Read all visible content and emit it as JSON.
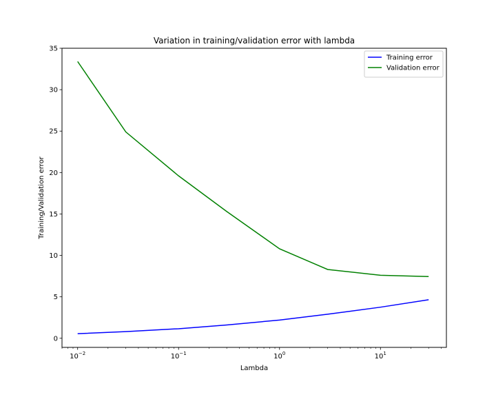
{
  "chart_data": {
    "type": "line",
    "title": "Variation in training/validation error with lambda",
    "xlabel": "Lambda",
    "ylabel": "Training/Validation error",
    "xscale": "log",
    "xlim": [
      0.007,
      45
    ],
    "ylim": [
      -1.1,
      35
    ],
    "grid": false,
    "legend_position": "top-right",
    "x_ticks": [
      {
        "base": "10",
        "exp": "−2",
        "value": 0.01
      },
      {
        "base": "10",
        "exp": "−1",
        "value": 0.1
      },
      {
        "base": "10",
        "exp": "0",
        "value": 1
      },
      {
        "base": "10",
        "exp": "1",
        "value": 10
      }
    ],
    "y_ticks": [
      0,
      5,
      10,
      15,
      20,
      25,
      30,
      35
    ],
    "x": [
      0.01,
      0.03,
      0.1,
      0.3,
      1,
      3,
      10,
      30
    ],
    "series": [
      {
        "name": "Training error",
        "color": "#0000ff",
        "values": [
          0.55,
          0.8,
          1.15,
          1.6,
          2.2,
          2.9,
          3.75,
          4.65
        ]
      },
      {
        "name": "Validation error",
        "color": "#008000",
        "values": [
          33.4,
          24.9,
          19.6,
          15.3,
          10.8,
          8.3,
          7.6,
          7.45
        ]
      }
    ]
  }
}
